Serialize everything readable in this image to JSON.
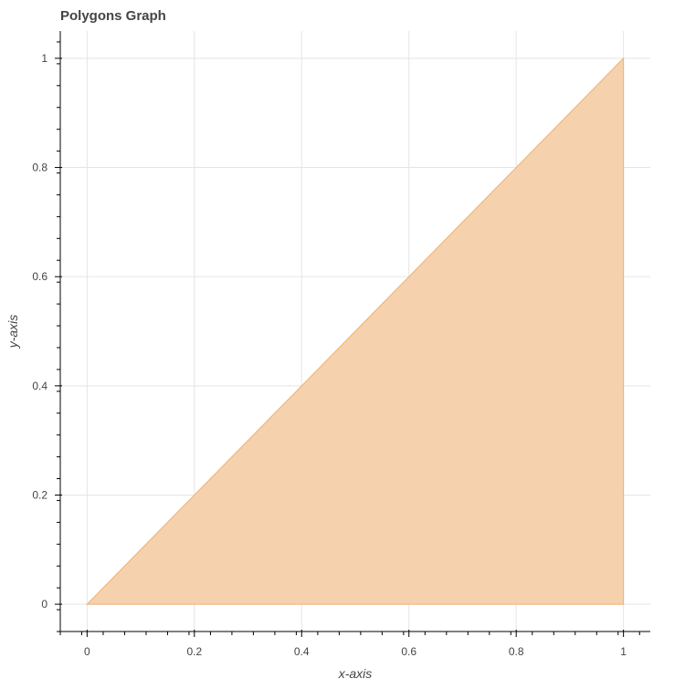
{
  "chart_data": {
    "type": "area",
    "title": "Polygons Graph",
    "xlabel": "x-axis",
    "ylabel": "y-axis",
    "xlim": [
      -0.05,
      1.05
    ],
    "ylim": [
      -0.05,
      1.05
    ],
    "xticks": [
      0,
      0.2,
      0.4,
      0.6,
      0.8,
      1
    ],
    "yticks": [
      0,
      0.2,
      0.4,
      0.6,
      0.8,
      1
    ],
    "xtick_labels": [
      "0",
      "0.2",
      "0.4",
      "0.6",
      "0.8",
      "1"
    ],
    "ytick_labels": [
      "0",
      "0.2",
      "0.4",
      "0.6",
      "0.8",
      "1"
    ],
    "grid": true,
    "series": [
      {
        "type": "polygon",
        "x": [
          0,
          1,
          1
        ],
        "y": [
          0,
          1,
          0
        ],
        "fill_color": "#f5d2ad",
        "line_color": "#f0b070"
      }
    ]
  }
}
